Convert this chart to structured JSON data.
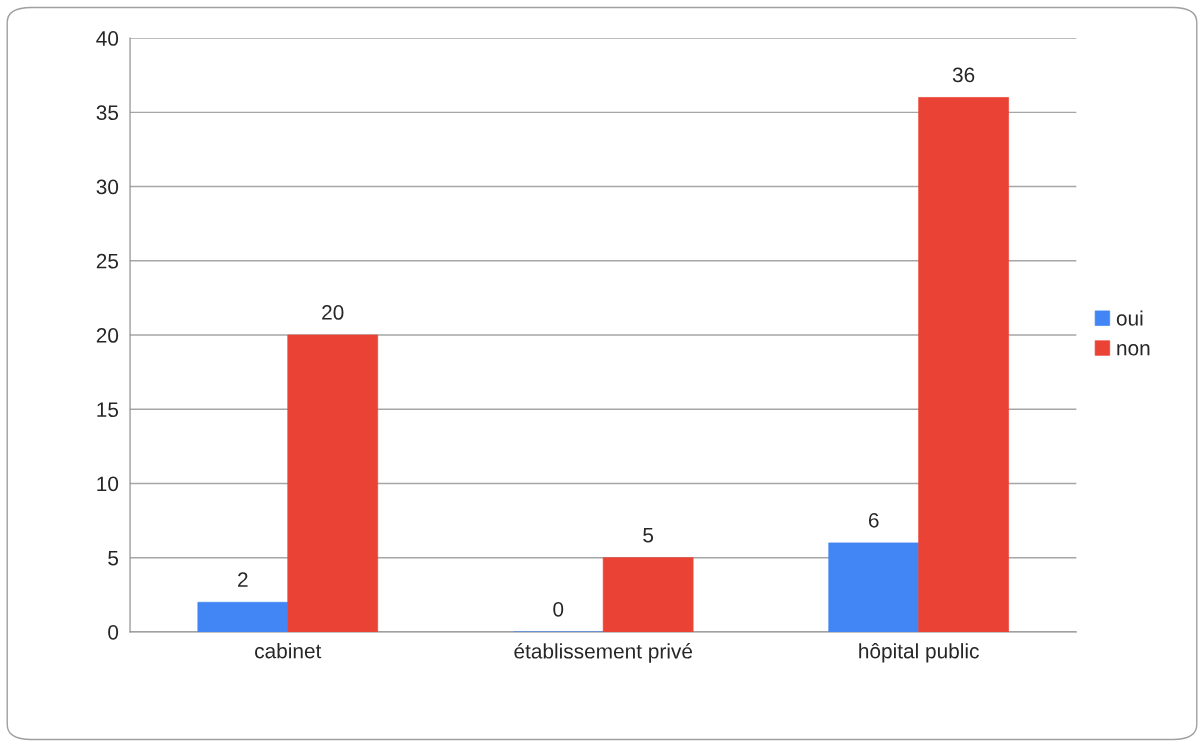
{
  "chart_data": {
    "type": "bar",
    "categories": [
      "cabinet",
      "établissement privé",
      "hôpital public"
    ],
    "series": [
      {
        "name": "oui",
        "color": "#4285f4",
        "values": [
          2,
          0,
          6
        ]
      },
      {
        "name": "non",
        "color": "#ea4335",
        "values": [
          20,
          5,
          36
        ]
      }
    ],
    "ylim": [
      0,
      40
    ],
    "yticks": [
      0,
      5,
      10,
      15,
      20,
      25,
      30,
      35,
      40
    ],
    "grid": "y",
    "legend": "right",
    "data_labels": true
  }
}
